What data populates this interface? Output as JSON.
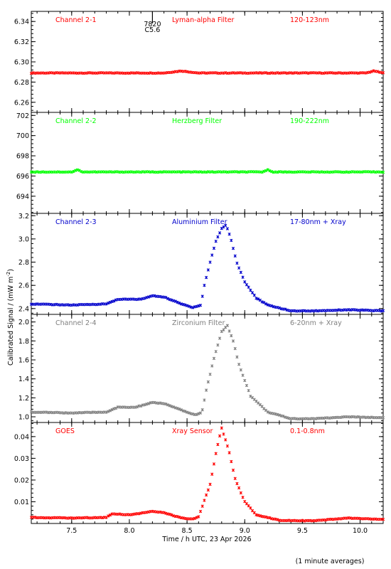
{
  "colors": {
    "red": "#ff0000",
    "green": "#00ff00",
    "blue": "#0000cc",
    "grey": "#808080",
    "axis": "#000000"
  },
  "figure": {
    "ylabel": "Calibrated Signal / (mW m",
    "ylabel_sup": "-2",
    "ylabel_close": ")",
    "xlabel": "Time / h UTC, 23 Apr 2026",
    "footnote": "(1 minute averages)",
    "marker_label_top": "7820",
    "marker_label_bottom": "C5.6",
    "marker_x": 8.2
  },
  "chart_data": [
    {
      "type": "scatter",
      "name": "Channel 2-1",
      "filter": "Lyman-alpha Filter",
      "band": "120-123nm",
      "color": "red",
      "xlim": [
        7.15,
        10.2
      ],
      "ylim": [
        6.25,
        6.35
      ],
      "yticks": [
        "6.26",
        "6.28",
        "6.30",
        "6.32",
        "6.34"
      ],
      "ytick_values": [
        6.26,
        6.28,
        6.3,
        6.32,
        6.34
      ],
      "profile": [
        [
          7.15,
          6.289
        ],
        [
          8.3,
          6.289
        ],
        [
          8.45,
          6.291
        ],
        [
          8.6,
          6.289
        ],
        [
          10.05,
          6.289
        ],
        [
          10.12,
          6.291
        ],
        [
          10.2,
          6.289
        ]
      ]
    },
    {
      "type": "scatter",
      "name": "Channel 2-2",
      "filter": "Herzberg Filter",
      "band": "190-222nm",
      "color": "green",
      "xlim": [
        7.15,
        10.2
      ],
      "ylim": [
        692.3,
        702.3
      ],
      "yticks": [
        "694",
        "696",
        "698",
        "700",
        "702"
      ],
      "ytick_values": [
        694,
        696,
        698,
        700,
        702
      ],
      "profile": [
        [
          7.15,
          696.4
        ],
        [
          7.5,
          696.4
        ],
        [
          7.55,
          696.6
        ],
        [
          7.6,
          696.4
        ],
        [
          9.15,
          696.4
        ],
        [
          9.2,
          696.6
        ],
        [
          9.25,
          696.4
        ],
        [
          10.2,
          696.4
        ]
      ]
    },
    {
      "type": "scatter",
      "name": "Channel 2-3",
      "filter": "Aluminium Filter",
      "band": "17-80nm + Xray",
      "color": "blue",
      "xlim": [
        7.15,
        10.2
      ],
      "ylim": [
        2.35,
        3.22
      ],
      "yticks": [
        "2.4",
        "2.6",
        "2.8",
        "3.0",
        "3.2"
      ],
      "ytick_values": [
        2.4,
        2.6,
        2.8,
        3.0,
        3.2
      ],
      "profile": [
        [
          7.15,
          2.44
        ],
        [
          7.5,
          2.43
        ],
        [
          7.8,
          2.44
        ],
        [
          7.9,
          2.48
        ],
        [
          8.1,
          2.48
        ],
        [
          8.2,
          2.51
        ],
        [
          8.3,
          2.5
        ],
        [
          8.45,
          2.44
        ],
        [
          8.55,
          2.41
        ],
        [
          8.62,
          2.43
        ],
        [
          8.65,
          2.6
        ],
        [
          8.7,
          2.8
        ],
        [
          8.75,
          2.98
        ],
        [
          8.8,
          3.09
        ],
        [
          8.84,
          3.12
        ],
        [
          8.88,
          3.0
        ],
        [
          8.93,
          2.8
        ],
        [
          9.0,
          2.63
        ],
        [
          9.1,
          2.49
        ],
        [
          9.2,
          2.43
        ],
        [
          9.4,
          2.38
        ],
        [
          9.6,
          2.38
        ],
        [
          9.9,
          2.39
        ],
        [
          10.2,
          2.38
        ]
      ]
    },
    {
      "type": "scatter",
      "name": "Channel 2-4",
      "filter": "Zirconium Filter",
      "band": "6-20nm + Xray",
      "color": "grey",
      "xlim": [
        7.15,
        10.2
      ],
      "ylim": [
        0.94,
        2.08
      ],
      "yticks": [
        "1.0",
        "1.2",
        "1.4",
        "1.6",
        "1.8",
        "2.0"
      ],
      "ytick_values": [
        1.0,
        1.2,
        1.4,
        1.6,
        1.8,
        2.0
      ],
      "profile": [
        [
          7.15,
          1.05
        ],
        [
          7.5,
          1.04
        ],
        [
          7.8,
          1.05
        ],
        [
          7.9,
          1.1
        ],
        [
          8.05,
          1.1
        ],
        [
          8.2,
          1.15
        ],
        [
          8.3,
          1.14
        ],
        [
          8.45,
          1.07
        ],
        [
          8.57,
          1.02
        ],
        [
          8.63,
          1.05
        ],
        [
          8.67,
          1.3
        ],
        [
          8.73,
          1.6
        ],
        [
          8.8,
          1.9
        ],
        [
          8.85,
          1.96
        ],
        [
          8.9,
          1.8
        ],
        [
          8.95,
          1.55
        ],
        [
          9.05,
          1.22
        ],
        [
          9.2,
          1.05
        ],
        [
          9.4,
          0.98
        ],
        [
          9.6,
          0.98
        ],
        [
          9.9,
          1.0
        ],
        [
          10.2,
          0.99
        ]
      ]
    },
    {
      "type": "scatter",
      "name": "GOES",
      "filter": "Xray Sensor",
      "band": "0.1-0.8nm",
      "color": "red",
      "xlim": [
        7.15,
        10.2
      ],
      "ylim": [
        0.0,
        0.0465
      ],
      "yticks": [
        "0.01",
        "0.02",
        "0.03",
        "0.04"
      ],
      "ytick_values": [
        0.01,
        0.02,
        0.03,
        0.04
      ],
      "xticks": [
        "7.5",
        "8.0",
        "8.5",
        "9.0",
        "9.5",
        "10.0"
      ],
      "xtick_values": [
        7.5,
        8.0,
        8.5,
        9.0,
        9.5,
        10.0
      ],
      "profile": [
        [
          7.15,
          0.0028
        ],
        [
          7.5,
          0.0025
        ],
        [
          7.8,
          0.0028
        ],
        [
          7.85,
          0.0045
        ],
        [
          8.0,
          0.004
        ],
        [
          8.2,
          0.0055
        ],
        [
          8.3,
          0.005
        ],
        [
          8.45,
          0.0025
        ],
        [
          8.55,
          0.002
        ],
        [
          8.6,
          0.003
        ],
        [
          8.7,
          0.018
        ],
        [
          8.76,
          0.035
        ],
        [
          8.8,
          0.044
        ],
        [
          8.86,
          0.034
        ],
        [
          8.92,
          0.02
        ],
        [
          9.0,
          0.01
        ],
        [
          9.1,
          0.004
        ],
        [
          9.3,
          0.0015
        ],
        [
          9.6,
          0.0012
        ],
        [
          9.9,
          0.0025
        ],
        [
          10.2,
          0.0018
        ]
      ]
    }
  ]
}
